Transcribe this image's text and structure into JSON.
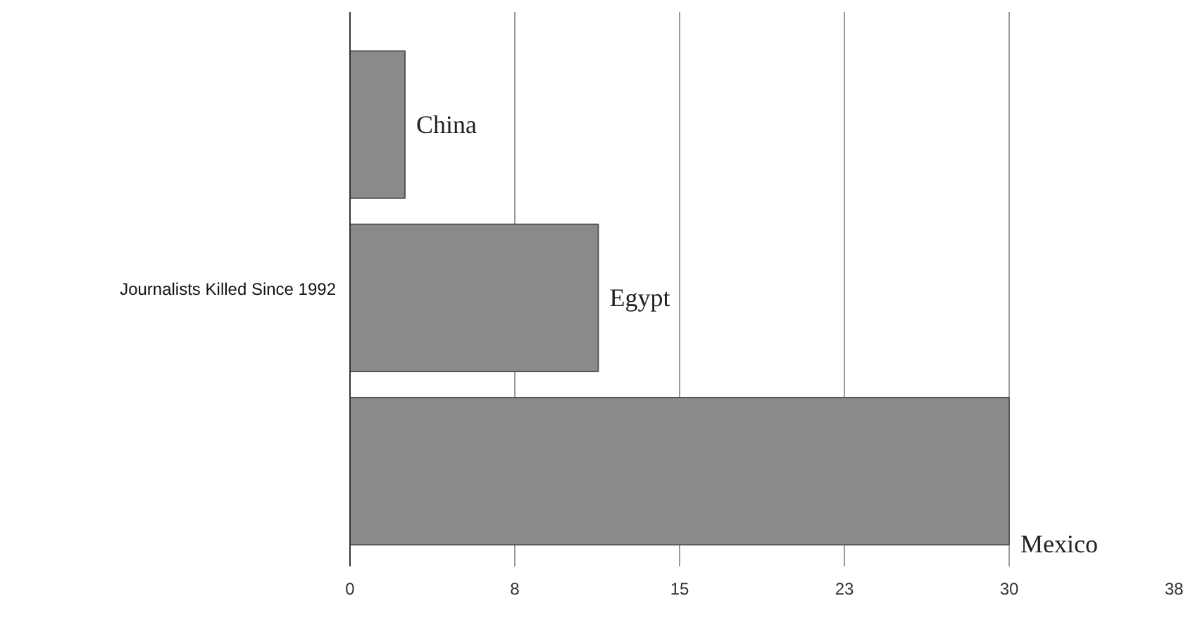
{
  "chart_data": {
    "type": "bar",
    "orientation": "horizontal",
    "ylabel": "Journalists Killed Since 1992",
    "categories": [
      "China",
      "Egypt",
      "Mexico"
    ],
    "values": [
      2.5,
      11.3,
      30
    ],
    "color": "#8a8a8a",
    "xlim": [
      0,
      37.5
    ],
    "xticks": [
      0,
      {
        "value": 7.5,
        "label": "8"
      },
      15,
      {
        "value": 22.5,
        "label": "23"
      },
      30,
      {
        "value": 37.5,
        "label": "38"
      }
    ],
    "grid": "x"
  }
}
